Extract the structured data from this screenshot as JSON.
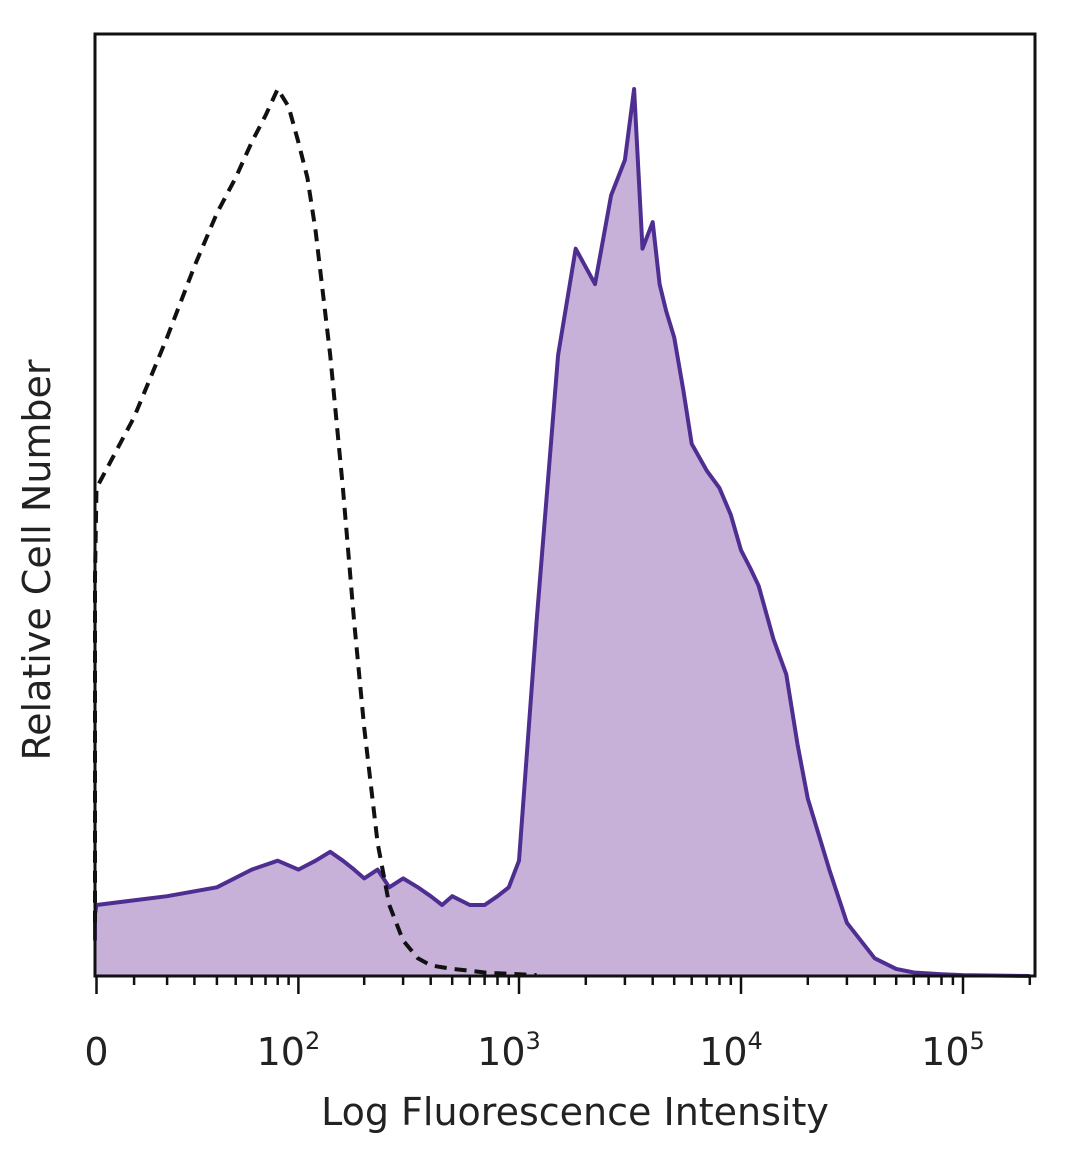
{
  "chart_data": {
    "type": "area",
    "title": "",
    "xlabel": "Log Fluorescence Intensity",
    "ylabel": "Relative Cell Number",
    "x_scale": "biexponential",
    "xlim": [
      -100,
      200000
    ],
    "ylim": [
      0,
      1.0
    ],
    "grid": false,
    "x_ticks": [
      {
        "value": 0,
        "base": "0",
        "exp": ""
      },
      {
        "value": 100,
        "base": "10",
        "exp": "2"
      },
      {
        "value": 1000,
        "base": "10",
        "exp": "3"
      },
      {
        "value": 10000,
        "base": "10",
        "exp": "4"
      },
      {
        "value": 100000,
        "base": "10",
        "exp": "5"
      }
    ],
    "series": [
      {
        "style": "dashed-outline",
        "color": "#111111",
        "x": [
          -100,
          -80,
          -60,
          -40,
          -20,
          0,
          10,
          20,
          30,
          40,
          50,
          60,
          70,
          80,
          90,
          100,
          110,
          120,
          140,
          160,
          180,
          200,
          230,
          260,
          300,
          350,
          400,
          500,
          600,
          700,
          800,
          1000,
          1200
        ],
        "y": [
          0.06,
          0.13,
          0.23,
          0.33,
          0.45,
          0.55,
          0.63,
          0.72,
          0.8,
          0.86,
          0.9,
          0.94,
          0.97,
          1.0,
          0.98,
          0.94,
          0.9,
          0.84,
          0.7,
          0.55,
          0.4,
          0.28,
          0.15,
          0.08,
          0.04,
          0.02,
          0.012,
          0.008,
          0.006,
          0.004,
          0.003,
          0.002,
          0.001
        ]
      },
      {
        "style": "filled",
        "color": "#4e2f91",
        "fill": "#c8b1d8",
        "x": [
          -100,
          -60,
          -20,
          0,
          20,
          40,
          60,
          80,
          100,
          120,
          140,
          160,
          180,
          200,
          230,
          260,
          300,
          350,
          400,
          450,
          500,
          600,
          700,
          800,
          900,
          1000,
          1200,
          1500,
          1800,
          2200,
          2600,
          3000,
          3300,
          3600,
          4000,
          4300,
          4600,
          5000,
          5500,
          6000,
          7000,
          8000,
          9000,
          10000,
          11000,
          12000,
          14000,
          16000,
          18000,
          20000,
          25000,
          30000,
          40000,
          50000,
          60000,
          80000,
          100000,
          200000
        ],
        "y": [
          0.04,
          0.05,
          0.07,
          0.08,
          0.09,
          0.1,
          0.12,
          0.13,
          0.12,
          0.13,
          0.14,
          0.13,
          0.12,
          0.11,
          0.12,
          0.1,
          0.11,
          0.1,
          0.09,
          0.08,
          0.09,
          0.08,
          0.08,
          0.09,
          0.1,
          0.13,
          0.4,
          0.7,
          0.82,
          0.78,
          0.88,
          0.92,
          1.0,
          0.82,
          0.85,
          0.78,
          0.75,
          0.72,
          0.66,
          0.6,
          0.57,
          0.55,
          0.52,
          0.48,
          0.46,
          0.44,
          0.38,
          0.34,
          0.26,
          0.2,
          0.12,
          0.06,
          0.02,
          0.008,
          0.004,
          0.002,
          0.001,
          0.0
        ]
      }
    ]
  }
}
